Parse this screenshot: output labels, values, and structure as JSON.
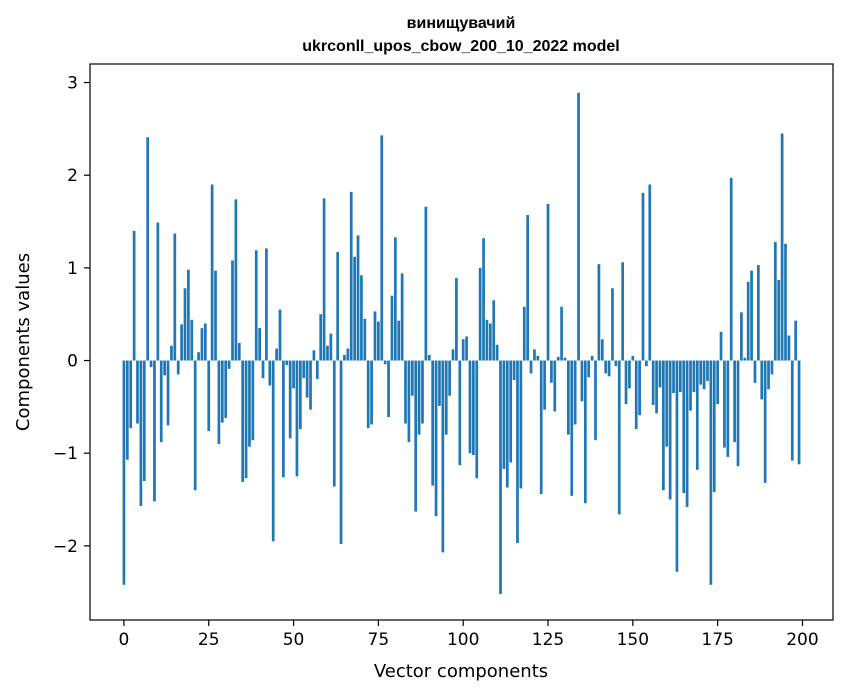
{
  "chart_data": {
    "type": "bar",
    "title": "винищувачий",
    "subtitle": "ukrconll_upos_cbow_200_10_2022 model",
    "xlabel": "Vector components",
    "ylabel": "Components values",
    "xlim": [
      -10,
      209
    ],
    "ylim": [
      -2.8,
      3.2
    ],
    "xticks": [
      0,
      25,
      50,
      75,
      100,
      125,
      150,
      175,
      200
    ],
    "yticks": [
      -2,
      -1,
      0,
      1,
      2,
      3
    ],
    "bar_color": "#1f77b4",
    "x": [
      0,
      1,
      2,
      3,
      4,
      5,
      6,
      7,
      8,
      9,
      10,
      11,
      12,
      13,
      14,
      15,
      16,
      17,
      18,
      19,
      20,
      21,
      22,
      23,
      24,
      25,
      26,
      27,
      28,
      29,
      30,
      31,
      32,
      33,
      34,
      35,
      36,
      37,
      38,
      39,
      40,
      41,
      42,
      43,
      44,
      45,
      46,
      47,
      48,
      49,
      50,
      51,
      52,
      53,
      54,
      55,
      56,
      57,
      58,
      59,
      60,
      61,
      62,
      63,
      64,
      65,
      66,
      67,
      68,
      69,
      70,
      71,
      72,
      73,
      74,
      75,
      76,
      77,
      78,
      79,
      80,
      81,
      82,
      83,
      84,
      85,
      86,
      87,
      88,
      89,
      90,
      91,
      92,
      93,
      94,
      95,
      96,
      97,
      98,
      99,
      100,
      101,
      102,
      103,
      104,
      105,
      106,
      107,
      108,
      109,
      110,
      111,
      112,
      113,
      114,
      115,
      116,
      117,
      118,
      119,
      120,
      121,
      122,
      123,
      124,
      125,
      126,
      127,
      128,
      129,
      130,
      131,
      132,
      133,
      134,
      135,
      136,
      137,
      138,
      139,
      140,
      141,
      142,
      143,
      144,
      145,
      146,
      147,
      148,
      149,
      150,
      151,
      152,
      153,
      154,
      155,
      156,
      157,
      158,
      159,
      160,
      161,
      162,
      163,
      164,
      165,
      166,
      167,
      168,
      169,
      170,
      171,
      172,
      173,
      174,
      175,
      176,
      177,
      178,
      179,
      180,
      181,
      182,
      183,
      184,
      185,
      186,
      187,
      188,
      189,
      190,
      191,
      192,
      193,
      194,
      195,
      196,
      197,
      198,
      199
    ],
    "values": [
      -2.42,
      -1.07,
      -0.73,
      1.4,
      -0.68,
      -1.57,
      -1.3,
      2.41,
      -0.07,
      -1.52,
      1.49,
      -0.88,
      -0.16,
      -0.7,
      0.16,
      1.37,
      -0.15,
      0.39,
      0.78,
      0.98,
      0.44,
      -1.4,
      0.09,
      0.35,
      0.4,
      -0.76,
      1.9,
      0.97,
      -0.9,
      -0.67,
      -0.62,
      -0.09,
      1.08,
      1.74,
      0.19,
      -1.31,
      -1.27,
      -0.93,
      -0.86,
      1.19,
      0.35,
      -0.19,
      1.21,
      -0.27,
      -1.95,
      0.13,
      0.55,
      -1.26,
      -0.05,
      -0.84,
      -0.3,
      -1.25,
      -0.74,
      -0.19,
      -0.4,
      -0.53,
      0.11,
      -0.2,
      0.5,
      1.75,
      0.16,
      0.29,
      -1.36,
      1.17,
      -1.98,
      0.06,
      0.13,
      1.82,
      1.12,
      1.35,
      0.92,
      0.45,
      -0.73,
      -0.69,
      0.53,
      0.42,
      2.43,
      -0.04,
      -0.61,
      0.7,
      1.33,
      0.43,
      0.94,
      -0.68,
      -0.88,
      -0.38,
      -1.63,
      -0.8,
      -0.68,
      1.66,
      0.06,
      -1.35,
      -1.68,
      -0.49,
      -2.07,
      -0.8,
      -0.38,
      0.12,
      0.89,
      -1.13,
      0.23,
      0.26,
      -1.0,
      -1.02,
      -1.27,
      1.0,
      1.32,
      0.44,
      0.4,
      0.65,
      0.17,
      -2.52,
      -1.17,
      -1.37,
      -1.1,
      -0.21,
      -1.97,
      -1.38,
      0.58,
      1.57,
      -0.14,
      0.12,
      0.05,
      -1.44,
      -0.53,
      1.69,
      -0.24,
      -0.55,
      0.04,
      0.58,
      0.03,
      -0.8,
      -1.46,
      -0.69,
      2.89,
      -0.44,
      -1.54,
      -0.18,
      0.05,
      -0.86,
      1.04,
      0.23,
      -0.14,
      -0.17,
      0.78,
      -0.06,
      -1.66,
      1.06,
      -0.47,
      -0.3,
      0.05,
      -0.74,
      -0.59,
      1.81,
      -0.06,
      1.9,
      -0.48,
      -0.57,
      -0.29,
      -1.4,
      -0.93,
      -1.5,
      -0.35,
      -2.28,
      -0.34,
      -1.43,
      -1.58,
      -0.54,
      -0.34,
      -1.18,
      -0.26,
      -0.31,
      -0.22,
      -2.42,
      -1.42,
      -0.47,
      0.31,
      -0.94,
      -1.04,
      1.97,
      -0.88,
      -1.14,
      0.52,
      0.03,
      0.85,
      0.97,
      -0.24,
      1.03,
      -0.42,
      -1.32,
      -0.31,
      -0.15,
      1.28,
      0.87,
      2.45,
      1.26,
      0.27,
      -1.08,
      0.43,
      -1.12
    ]
  }
}
